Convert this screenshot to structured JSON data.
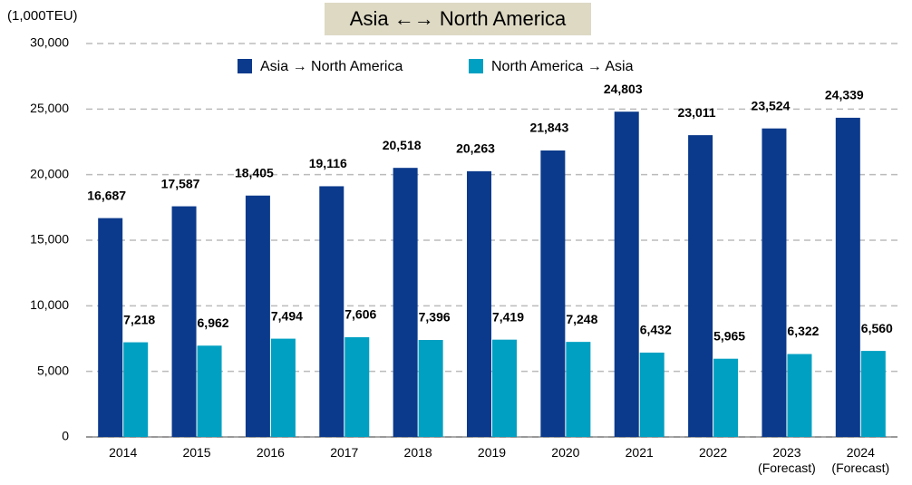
{
  "chart_data": {
    "type": "bar",
    "title": "Asia ←→ North America",
    "y_axis_label": "(1,000TEU)",
    "categories": [
      "2014",
      "2015",
      "2016",
      "2017",
      "2018",
      "2019",
      "2020",
      "2021",
      "2022",
      "2023\n(Forecast)",
      "2024\n(Forecast)"
    ],
    "series": [
      {
        "name": "Asia → North America",
        "color": "#0b3a8c",
        "values": [
          16687,
          17587,
          18405,
          19116,
          20518,
          20263,
          21843,
          24803,
          23011,
          23524,
          24339
        ],
        "value_labels": [
          "16,687",
          "17,587",
          "18,405",
          "19,116",
          "20,518",
          "20,263",
          "21,843",
          "24,803",
          "23,011",
          "23,524",
          "24,339"
        ]
      },
      {
        "name": "North America → Asia",
        "color": "#00a0c2",
        "values": [
          7218,
          6962,
          7494,
          7606,
          7396,
          7419,
          7248,
          6432,
          5965,
          6322,
          6560
        ],
        "value_labels": [
          "7,218",
          "6,962",
          "7,494",
          "7,606",
          "7,396",
          "7,419",
          "7,248",
          "6,432",
          "5,965",
          "6,322",
          "6,560"
        ]
      }
    ],
    "ylim": [
      0,
      30000
    ],
    "yticks": [
      0,
      {
        "value": 5000,
        "label": "5,000"
      },
      {
        "value": 10000,
        "label": "10,000"
      },
      {
        "value": 15000,
        "label": "15,000"
      },
      {
        "value": 20000,
        "label": "20,000"
      },
      {
        "value": 25000,
        "label": "25,000"
      },
      {
        "value": 30000,
        "label": "30,000"
      }
    ],
    "grid": true,
    "legend": "top"
  }
}
